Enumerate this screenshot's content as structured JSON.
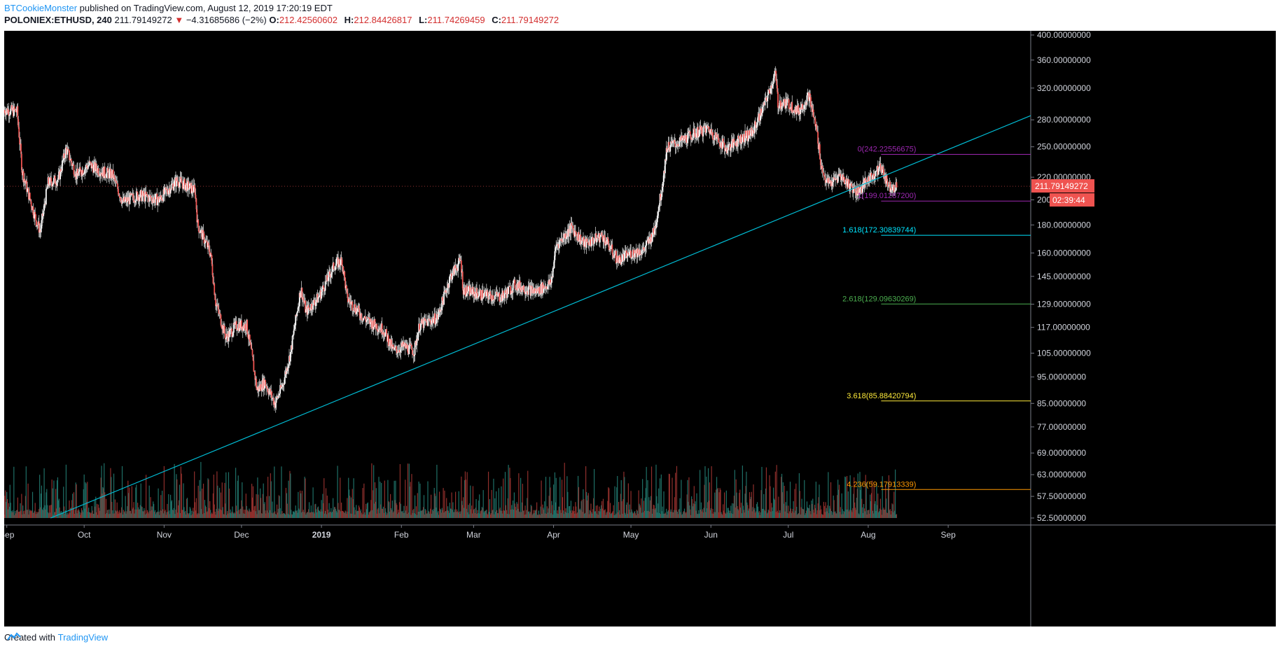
{
  "header": {
    "author": "BTCookieMonster",
    "published_text": "published on TradingView.com, August 12, 2019 17:20:19 EDT",
    "symbol": "POLONIEX:ETHUSD, 240",
    "last": "211.79149272",
    "change": "−4.31685686 (−2%)",
    "o_label": "O:",
    "o": "212.42560602",
    "h_label": "H:",
    "h": "212.84426817",
    "l_label": "L:",
    "l": "211.74269459",
    "c_label": "C:",
    "c": "211.79149272"
  },
  "footer": {
    "created_with": "Created with",
    "brand": "TradingView"
  },
  "colors": {
    "up": "#26a69a",
    "down": "#ef5350",
    "trendline": "#00bcd4",
    "background": "#000000"
  },
  "chart_data": {
    "type": "candlestick",
    "scale": "log",
    "ylim": [
      52.5,
      400
    ],
    "y_ticks": [
      "400.00000000",
      "360.00000000",
      "320.00000000",
      "280.00000000",
      "250.00000000",
      "220.00000000",
      "200.00000000",
      "180.00000000",
      "160.00000000",
      "145.00000000",
      "129.00000000",
      "117.00000000",
      "105.00000000",
      "95.00000000",
      "85.00000000",
      "77.00000000",
      "69.00000000",
      "63.00000000",
      "57.50000000",
      "52.50000000"
    ],
    "y_tick_values": [
      400,
      360,
      320,
      280,
      250,
      220,
      200,
      180,
      160,
      145,
      129,
      117,
      105,
      95,
      85,
      77,
      69,
      63,
      57.5,
      52.5
    ],
    "x_ticks": [
      "Sep",
      "Oct",
      "Nov",
      "Dec",
      "2019",
      "Feb",
      "Mar",
      "Apr",
      "May",
      "Jun",
      "Jul",
      "Aug",
      "Sep"
    ],
    "x_tick_dates": [
      "2018-09-01",
      "2018-10-01",
      "2018-11-01",
      "2018-12-01",
      "2019-01-01",
      "2019-02-01",
      "2019-03-01",
      "2019-04-01",
      "2019-05-01",
      "2019-06-01",
      "2019-07-01",
      "2019-08-01",
      "2019-09-01"
    ],
    "x_range": [
      "2018-08-31",
      "2019-10-03"
    ],
    "price_path": [
      [
        "2018-08-31",
        292
      ],
      [
        "2018-09-05",
        290
      ],
      [
        "2018-09-07",
        225
      ],
      [
        "2018-09-12",
        186
      ],
      [
        "2018-09-14",
        175
      ],
      [
        "2018-09-17",
        215
      ],
      [
        "2018-09-21",
        218
      ],
      [
        "2018-09-24",
        248
      ],
      [
        "2018-09-28",
        222
      ],
      [
        "2018-10-03",
        232
      ],
      [
        "2018-10-08",
        225
      ],
      [
        "2018-10-12",
        222
      ],
      [
        "2018-10-16",
        198
      ],
      [
        "2018-10-22",
        204
      ],
      [
        "2018-10-30",
        200
      ],
      [
        "2018-11-03",
        210
      ],
      [
        "2018-11-06",
        217
      ],
      [
        "2018-11-13",
        208
      ],
      [
        "2018-11-14",
        180
      ],
      [
        "2018-11-19",
        160
      ],
      [
        "2018-11-21",
        130
      ],
      [
        "2018-11-25",
        112
      ],
      [
        "2018-11-29",
        118
      ],
      [
        "2018-12-03",
        118
      ],
      [
        "2018-12-05",
        104
      ],
      [
        "2018-12-07",
        90
      ],
      [
        "2018-12-10",
        93
      ],
      [
        "2018-12-14",
        85
      ],
      [
        "2018-12-17",
        92
      ],
      [
        "2018-12-20",
        105
      ],
      [
        "2018-12-24",
        138
      ],
      [
        "2018-12-26",
        125
      ],
      [
        "2018-12-31",
        133
      ],
      [
        "2019-01-06",
        152
      ],
      [
        "2019-01-09",
        155
      ],
      [
        "2019-01-11",
        132
      ],
      [
        "2019-01-18",
        121
      ],
      [
        "2019-01-25",
        116
      ],
      [
        "2019-01-29",
        106
      ],
      [
        "2019-02-02",
        108
      ],
      [
        "2019-02-06",
        106
      ],
      [
        "2019-02-08",
        118
      ],
      [
        "2019-02-15",
        122
      ],
      [
        "2019-02-20",
        145
      ],
      [
        "2019-02-24",
        155
      ],
      [
        "2019-02-25",
        137
      ],
      [
        "2019-03-05",
        134
      ],
      [
        "2019-03-12",
        133
      ],
      [
        "2019-03-17",
        140
      ],
      [
        "2019-03-25",
        136
      ],
      [
        "2019-03-31",
        141
      ],
      [
        "2019-04-02",
        165
      ],
      [
        "2019-04-08",
        178
      ],
      [
        "2019-04-13",
        166
      ],
      [
        "2019-04-20",
        172
      ],
      [
        "2019-04-26",
        155
      ],
      [
        "2019-05-01",
        160
      ],
      [
        "2019-05-06",
        162
      ],
      [
        "2019-05-10",
        175
      ],
      [
        "2019-05-13",
        210
      ],
      [
        "2019-05-15",
        250
      ],
      [
        "2019-05-20",
        255
      ],
      [
        "2019-05-26",
        265
      ],
      [
        "2019-05-31",
        270
      ],
      [
        "2019-06-07",
        248
      ],
      [
        "2019-06-12",
        258
      ],
      [
        "2019-06-17",
        265
      ],
      [
        "2019-06-22",
        300
      ],
      [
        "2019-06-26",
        340
      ],
      [
        "2019-06-27",
        300
      ],
      [
        "2019-07-01",
        300
      ],
      [
        "2019-07-05",
        290
      ],
      [
        "2019-07-09",
        310
      ],
      [
        "2019-07-12",
        268
      ],
      [
        "2019-07-14",
        228
      ],
      [
        "2019-07-16",
        215
      ],
      [
        "2019-07-18",
        215
      ],
      [
        "2019-07-21",
        222
      ],
      [
        "2019-07-25",
        212
      ],
      [
        "2019-07-28",
        207
      ],
      [
        "2019-08-01",
        218
      ],
      [
        "2019-08-04",
        225
      ],
      [
        "2019-08-06",
        230
      ],
      [
        "2019-08-09",
        212
      ],
      [
        "2019-08-12",
        211.79
      ]
    ],
    "last_price": "211.79149272",
    "last_price_value": 211.79,
    "countdown": "02:39:44",
    "trendline": {
      "start": [
        "2018-09-18",
        52.5
      ],
      "end": [
        "2019-10-03",
        285
      ],
      "color": "#00bcd4"
    },
    "fib_levels": [
      {
        "label": "0(242.22556675)",
        "value": 242.22556675,
        "color": "#9c27b0"
      },
      {
        "label": "1(199.01287200)",
        "value": 199.012872,
        "color": "#9c27b0"
      },
      {
        "label": "1.618(172.30839744)",
        "value": 172.30839744,
        "color": "#00e5ff"
      },
      {
        "label": "2.618(129.09630269)",
        "value": 129.09630269,
        "color": "#4caf50"
      },
      {
        "label": "3.618(85.88420794)",
        "value": 85.88420794,
        "color": "#ffeb3b"
      },
      {
        "label": "4.236(59.17913339)",
        "value": 59.17913339,
        "color": "#ff9800"
      }
    ],
    "fib_start_date": "2019-08-06",
    "volume_series": {
      "name": "Volume",
      "note_hidden": true
    }
  }
}
